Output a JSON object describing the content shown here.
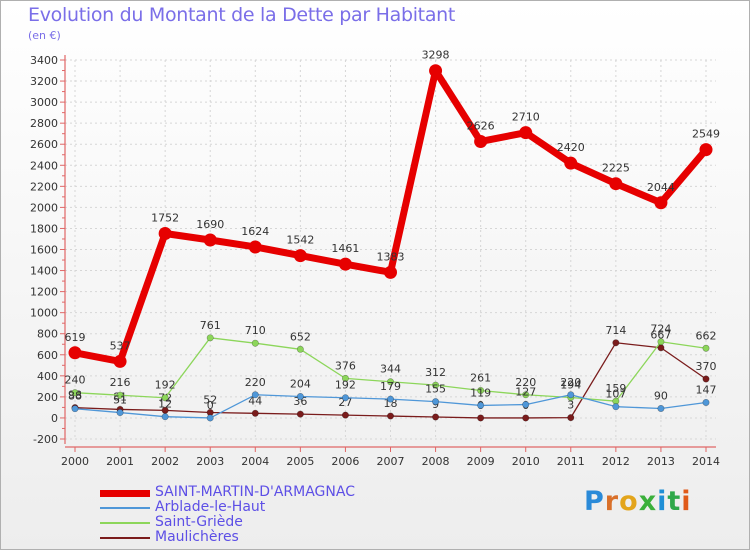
{
  "header": {
    "title": "Evolution du Montant de la Dette par Habitant",
    "unit": "(en €)"
  },
  "brand": {
    "logo_text": "Proxiti",
    "letter_colors": [
      "#2a8ad8",
      "#d9702a",
      "#e3a51c",
      "#3bb03b",
      "#1f8fd6",
      "#2fa84a",
      "#e05a1a"
    ]
  },
  "chart_data": {
    "type": "line",
    "title": "Evolution du Montant de la Dette par Habitant",
    "ylabel": "(en €)",
    "xlabel": "",
    "ylim": [
      -200,
      3400
    ],
    "yticks": [
      "-200",
      "0",
      "200",
      "400",
      "600",
      "800",
      "1000",
      "1200",
      "1400",
      "1600",
      "1800",
      "2000",
      "2200",
      "2400",
      "2600",
      "2800",
      "3000",
      "3200",
      "3400"
    ],
    "categories": [
      "2000",
      "2001",
      "2002",
      "2003",
      "2004",
      "2005",
      "2006",
      "2007",
      "2008",
      "2009",
      "2010",
      "2011",
      "2012",
      "2013",
      "2014"
    ],
    "grid": true,
    "legend_position": "bottom-left",
    "series": [
      {
        "name": "SAINT-MARTIN-D'ARMAGNAC",
        "color": "#e60000",
        "values": [
          619,
          537,
          1752,
          1690,
          1624,
          1542,
          1461,
          1383,
          3298,
          2626,
          2710,
          2420,
          2225,
          2044,
          2549
        ],
        "labels": [
          "619",
          "537",
          "1752",
          "1690",
          "1624",
          "1542",
          "1461",
          "1383",
          "3298",
          "2626",
          "2710",
          "2420",
          "2225",
          "2044",
          "2549"
        ]
      },
      {
        "name": "Arblade-le-Haut",
        "color": "#4f97d8",
        "values": [
          88,
          51,
          12,
          0,
          220,
          204,
          192,
          179,
          155,
          119,
          127,
          220,
          107,
          90,
          147
        ],
        "labels": [
          "88",
          "51",
          "12",
          "0",
          "220",
          "204",
          "192",
          "179",
          "155",
          "119",
          "127",
          "220",
          "107",
          "90",
          "147"
        ]
      },
      {
        "name": "Saint-Griède",
        "color": "#8cd65a",
        "values": [
          240,
          216,
          192,
          761,
          710,
          652,
          376,
          344,
          312,
          261,
          220,
          194,
          159,
          724,
          662
        ],
        "labels": [
          "240",
          "216",
          "192",
          "761",
          "710",
          "652",
          "376",
          "344",
          "312",
          "261",
          "220",
          "194",
          "159",
          "724",
          "662"
        ]
      },
      {
        "name": "Maulichères",
        "color": "#7a1c1c",
        "values": [
          98,
          81,
          72,
          52,
          44,
          36,
          27,
          18,
          9,
          0,
          0,
          3,
          714,
          667,
          370
        ],
        "labels": [
          "98",
          "81",
          "72",
          "52",
          "44",
          "36",
          "27",
          "18",
          "9",
          "0",
          "0",
          "3",
          "714",
          "667",
          "370"
        ]
      }
    ]
  }
}
